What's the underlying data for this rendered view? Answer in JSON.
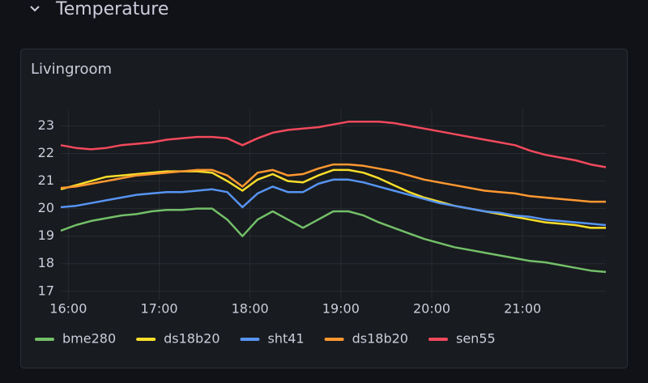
{
  "row_title": "Temperature",
  "chart_data": {
    "type": "line",
    "title": "Livingroom",
    "x": [
      "15:55",
      "16:05",
      "16:15",
      "16:25",
      "16:35",
      "16:45",
      "16:55",
      "17:05",
      "17:15",
      "17:25",
      "17:35",
      "17:45",
      "17:55",
      "18:05",
      "18:15",
      "18:25",
      "18:35",
      "18:45",
      "18:55",
      "19:05",
      "19:15",
      "19:25",
      "19:35",
      "19:45",
      "19:55",
      "20:05",
      "20:15",
      "20:25",
      "20:35",
      "20:45",
      "20:55",
      "21:05",
      "21:15",
      "21:25",
      "21:35",
      "21:45",
      "21:55"
    ],
    "xlim": [
      "15:55",
      "21:55"
    ],
    "xticks": [
      "16:00",
      "17:00",
      "18:00",
      "19:00",
      "20:00",
      "21:00"
    ],
    "ylim": [
      16.7,
      23.6
    ],
    "yticks": [
      17,
      18,
      19,
      20,
      21,
      22,
      23
    ],
    "grid": true,
    "legend": "bottom",
    "series": [
      {
        "name": "bme280",
        "color": "#73bf69",
        "values": [
          19.2,
          19.4,
          19.55,
          19.65,
          19.75,
          19.8,
          19.9,
          19.95,
          19.95,
          20.0,
          20.0,
          19.6,
          19.0,
          19.6,
          19.9,
          19.6,
          19.3,
          19.6,
          19.9,
          19.9,
          19.75,
          19.5,
          19.3,
          19.1,
          18.9,
          18.75,
          18.6,
          18.5,
          18.4,
          18.3,
          18.2,
          18.1,
          18.05,
          17.95,
          17.85,
          17.75,
          17.7
        ]
      },
      {
        "name": "ds18b20",
        "color": "#fade2a",
        "values": [
          20.7,
          20.85,
          21.0,
          21.15,
          21.2,
          21.25,
          21.3,
          21.35,
          21.35,
          21.35,
          21.3,
          21.0,
          20.65,
          21.05,
          21.25,
          21.0,
          20.95,
          21.2,
          21.4,
          21.4,
          21.3,
          21.1,
          20.85,
          20.6,
          20.4,
          20.25,
          20.1,
          20.0,
          19.9,
          19.8,
          19.7,
          19.6,
          19.5,
          19.45,
          19.4,
          19.3,
          19.3
        ]
      },
      {
        "name": "sht41",
        "color": "#5794f2",
        "values": [
          20.05,
          20.1,
          20.2,
          20.3,
          20.4,
          20.5,
          20.55,
          20.6,
          20.6,
          20.65,
          20.7,
          20.6,
          20.05,
          20.55,
          20.8,
          20.6,
          20.6,
          20.9,
          21.05,
          21.05,
          20.95,
          20.8,
          20.65,
          20.5,
          20.35,
          20.2,
          20.1,
          20.0,
          19.9,
          19.85,
          19.75,
          19.7,
          19.6,
          19.55,
          19.5,
          19.45,
          19.4
        ]
      },
      {
        "name": "ds18b20",
        "color": "#ff9830",
        "values": [
          20.75,
          20.8,
          20.9,
          21.0,
          21.1,
          21.2,
          21.25,
          21.3,
          21.35,
          21.4,
          21.4,
          21.2,
          20.8,
          21.3,
          21.4,
          21.2,
          21.25,
          21.45,
          21.6,
          21.6,
          21.55,
          21.45,
          21.35,
          21.2,
          21.05,
          20.95,
          20.85,
          20.75,
          20.65,
          20.6,
          20.55,
          20.45,
          20.4,
          20.35,
          20.3,
          20.25,
          20.25
        ]
      },
      {
        "name": "sen55",
        "color": "#f2495c",
        "values": [
          22.3,
          22.2,
          22.15,
          22.2,
          22.3,
          22.35,
          22.4,
          22.5,
          22.55,
          22.6,
          22.6,
          22.55,
          22.3,
          22.55,
          22.75,
          22.85,
          22.9,
          22.95,
          23.05,
          23.15,
          23.15,
          23.15,
          23.1,
          23.0,
          22.9,
          22.8,
          22.7,
          22.6,
          22.5,
          22.4,
          22.3,
          22.1,
          21.95,
          21.85,
          21.75,
          21.6,
          21.5
        ]
      }
    ]
  }
}
